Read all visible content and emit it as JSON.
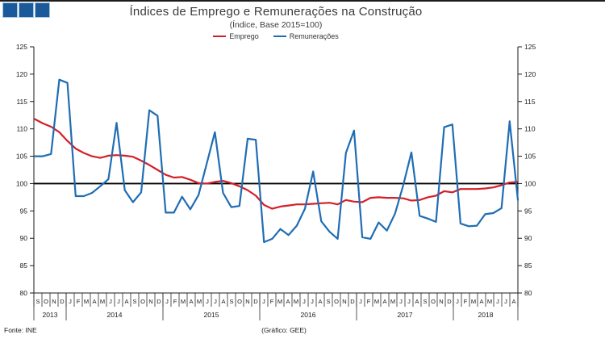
{
  "header": {
    "title": "Índices de Emprego e Remunerações na Construção",
    "subtitle": "(Índice, Base 2015=100)"
  },
  "legend": [
    {
      "label": "Emprego",
      "color": "#D51F26"
    },
    {
      "label": "Remunerações",
      "color": "#1F6DB4"
    }
  ],
  "logo": {
    "square_count": 3,
    "fill": "#1A5A9A",
    "border": "#A7C5DF"
  },
  "footer": {
    "source": "Fonte: INE",
    "credit": "(Gráfico: GEE)"
  },
  "chart_data": {
    "type": "line",
    "title": "Índices de Emprego e Remunerações na Construção",
    "subtitle": "(Índice, Base 2015=100)",
    "y_axis": {
      "min": 80,
      "max": 125,
      "step": 5,
      "baseline": 100,
      "labels_both_sides": true,
      "grid": false
    },
    "x_axis": {
      "years": [
        {
          "label": "2013",
          "months": [
            "S",
            "O",
            "N",
            "D"
          ]
        },
        {
          "label": "2014",
          "months": [
            "J",
            "F",
            "M",
            "A",
            "M",
            "J",
            "J",
            "A",
            "S",
            "O",
            "N",
            "D"
          ]
        },
        {
          "label": "2015",
          "months": [
            "J",
            "F",
            "M",
            "A",
            "M",
            "J",
            "J",
            "A",
            "S",
            "O",
            "N",
            "D"
          ]
        },
        {
          "label": "2016",
          "months": [
            "J",
            "F",
            "M",
            "A",
            "M",
            "J",
            "J",
            "A",
            "S",
            "O",
            "N",
            "D"
          ]
        },
        {
          "label": "2017",
          "months": [
            "J",
            "F",
            "M",
            "A",
            "M",
            "J",
            "J",
            "A",
            "S",
            "O",
            "N",
            "D"
          ]
        },
        {
          "label": "2018",
          "months": [
            "J",
            "F",
            "M",
            "A",
            "M",
            "J",
            "J",
            "A"
          ]
        }
      ]
    },
    "baseline_color": "#000000",
    "series": [
      {
        "name": "Emprego",
        "color": "#D51F26",
        "values": [
          111.8,
          111.0,
          110.4,
          109.4,
          107.8,
          106.4,
          105.6,
          105.0,
          104.7,
          105.1,
          105.2,
          105.1,
          104.9,
          104.2,
          103.4,
          102.5,
          101.6,
          101.1,
          101.2,
          100.7,
          100.1,
          100.0,
          100.3,
          100.5,
          100.1,
          99.5,
          98.8,
          97.8,
          96.1,
          95.4,
          95.8,
          96.0,
          96.2,
          96.2,
          96.3,
          96.4,
          96.5,
          96.2,
          97.0,
          96.7,
          96.6,
          97.4,
          97.5,
          97.4,
          97.4,
          97.3,
          96.9,
          97.0,
          97.5,
          97.8,
          98.6,
          98.4,
          99.0,
          99.0,
          99.0,
          99.1,
          99.3,
          99.7,
          100.2,
          100.3
        ]
      },
      {
        "name": "Remunerações",
        "color": "#1F6DB4",
        "values": [
          105.0,
          105.0,
          105.4,
          119.0,
          118.4,
          97.7,
          97.7,
          98.3,
          99.5,
          100.8,
          111.1,
          98.8,
          96.6,
          98.4,
          113.4,
          112.4,
          94.7,
          94.7,
          97.6,
          95.3,
          97.9,
          103.6,
          109.4,
          98.3,
          95.7,
          95.9,
          108.2,
          108.0,
          89.3,
          89.9,
          91.7,
          90.6,
          92.3,
          95.4,
          102.2,
          93.1,
          91.2,
          89.9,
          105.6,
          109.7,
          90.2,
          89.9,
          92.9,
          91.4,
          94.5,
          99.7,
          105.7,
          94.1,
          93.6,
          93.0,
          110.3,
          110.8,
          92.7,
          92.2,
          92.3,
          94.4,
          94.6,
          95.5,
          111.4,
          97.0
        ]
      }
    ]
  }
}
